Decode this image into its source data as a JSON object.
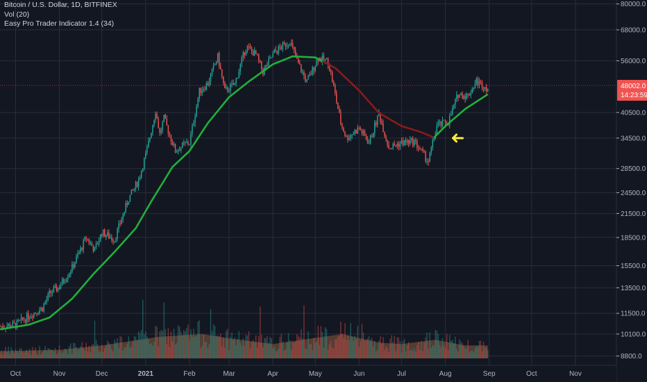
{
  "header": {
    "symbol_line": "Bitcoin / U.S. Dollar, 1D, BITFINEX",
    "volume_line": "Vol (20)",
    "indicator_line": "Easy Pro Trader Indicator 1.4 (34)"
  },
  "price_scale": {
    "ticks": [
      8800,
      10100,
      11500,
      13500,
      15500,
      18500,
      21500,
      24500,
      28500,
      34500,
      40500,
      56000,
      68000,
      80000
    ],
    "tick_labels": [
      "8800.0",
      "10100.0",
      "11500.0",
      "13500.0",
      "15500.0",
      "18500.0",
      "21500.0",
      "24500.0",
      "28500.0",
      "34500.0",
      "40500.0",
      "56000.0",
      "68000.0",
      "80000.0"
    ],
    "last_price": 48002,
    "last_price_label": "48002.0",
    "countdown_label": "14:23:59"
  },
  "time_scale": {
    "labels": [
      "Oct",
      "Nov",
      "Dec",
      "2021",
      "Feb",
      "Mar",
      "Apr",
      "May",
      "Jun",
      "Jul",
      "Aug",
      "Sep",
      "Oct",
      "Nov"
    ],
    "bold_labels": [
      "2021"
    ]
  },
  "colors": {
    "background": "#131722",
    "grid": "#2a2e39",
    "text": "#d1d4dc",
    "axis_text": "#b2b5be",
    "candle_up": "#26a69a",
    "candle_down": "#ef5350",
    "ma_up": "#1fb13c",
    "ma_down": "#8b1a1a",
    "volume_area": "#6b4a3a",
    "price_label_bg": "#f05350",
    "arrow": "#ffeb3b"
  },
  "chart_data": {
    "type": "candlestick",
    "title": "Bitcoin / U.S. Dollar, 1D, BITFINEX",
    "y_scale": "log",
    "ylim": [
      8300,
      82000
    ],
    "x_start_date": "2020-09-20",
    "x_end_date": "2021-11-30",
    "grid": true,
    "series": [
      {
        "name": "Bitcoin / U.S. Dollar",
        "kind": "close",
        "points": [
          [
            "2020-09-20",
            10600
          ],
          [
            "2020-10-01",
            10700
          ],
          [
            "2020-10-10",
            11300
          ],
          [
            "2020-10-20",
            11900
          ],
          [
            "2020-10-25",
            13000
          ],
          [
            "2020-11-01",
            13600
          ],
          [
            "2020-11-10",
            15300
          ],
          [
            "2020-11-20",
            18500
          ],
          [
            "2020-11-26",
            17100
          ],
          [
            "2020-12-01",
            19100
          ],
          [
            "2020-12-10",
            18300
          ],
          [
            "2020-12-16",
            21300
          ],
          [
            "2020-12-20",
            23600
          ],
          [
            "2020-12-27",
            26500
          ],
          [
            "2021-01-02",
            32000
          ],
          [
            "2021-01-08",
            41000
          ],
          [
            "2021-01-11",
            35400
          ],
          [
            "2021-01-14",
            39000
          ],
          [
            "2021-01-22",
            31800
          ],
          [
            "2021-01-28",
            33100
          ],
          [
            "2021-02-01",
            33500
          ],
          [
            "2021-02-08",
            46300
          ],
          [
            "2021-02-14",
            48600
          ],
          [
            "2021-02-21",
            57500
          ],
          [
            "2021-02-26",
            46300
          ],
          [
            "2021-03-05",
            48400
          ],
          [
            "2021-03-13",
            61200
          ],
          [
            "2021-03-20",
            58200
          ],
          [
            "2021-03-25",
            52300
          ],
          [
            "2021-04-02",
            59000
          ],
          [
            "2021-04-13",
            63500
          ],
          [
            "2021-04-18",
            56000
          ],
          [
            "2021-04-25",
            49000
          ],
          [
            "2021-05-03",
            57000
          ],
          [
            "2021-05-10",
            55800
          ],
          [
            "2021-05-13",
            49600
          ],
          [
            "2021-05-19",
            38000
          ],
          [
            "2021-05-23",
            34500
          ],
          [
            "2021-06-01",
            36700
          ],
          [
            "2021-06-08",
            33500
          ],
          [
            "2021-06-15",
            40200
          ],
          [
            "2021-06-22",
            32500
          ],
          [
            "2021-07-01",
            33500
          ],
          [
            "2021-07-10",
            33800
          ],
          [
            "2021-07-20",
            29800
          ],
          [
            "2021-07-26",
            37300
          ],
          [
            "2021-08-03",
            38200
          ],
          [
            "2021-08-10",
            45400
          ],
          [
            "2021-08-17",
            45000
          ],
          [
            "2021-08-23",
            49300
          ],
          [
            "2021-08-31",
            47100
          ]
        ]
      },
      {
        "name": "Easy Pro Trader Indicator 1.4 (34)",
        "kind": "moving-average",
        "points": [
          [
            "2020-09-20",
            10400
          ],
          [
            "2020-10-10",
            10700
          ],
          [
            "2020-10-25",
            11200
          ],
          [
            "2020-11-10",
            12600
          ],
          [
            "2020-11-25",
            14700
          ],
          [
            "2020-12-10",
            16900
          ],
          [
            "2020-12-25",
            19600
          ],
          [
            "2021-01-05",
            23200
          ],
          [
            "2021-01-20",
            28800
          ],
          [
            "2021-02-01",
            31800
          ],
          [
            "2021-02-14",
            37900
          ],
          [
            "2021-03-01",
            44600
          ],
          [
            "2021-03-15",
            49200
          ],
          [
            "2021-04-01",
            54800
          ],
          [
            "2021-04-15",
            57600
          ],
          [
            "2021-05-01",
            57200
          ],
          [
            "2021-05-15",
            53600
          ],
          [
            "2021-06-01",
            46500
          ],
          [
            "2021-06-15",
            40400
          ],
          [
            "2021-07-01",
            37200
          ],
          [
            "2021-07-15",
            35800
          ],
          [
            "2021-07-24",
            34600
          ],
          [
            "2021-08-01",
            37200
          ],
          [
            "2021-08-15",
            41400
          ],
          [
            "2021-08-31",
            45400
          ]
        ],
        "down_segment": [
          "2021-05-06",
          "2021-07-24"
        ]
      },
      {
        "name": "Vol (20)",
        "kind": "volume-ma",
        "points": [
          [
            "2020-09-20",
            0.25
          ],
          [
            "2020-11-01",
            0.3
          ],
          [
            "2020-12-01",
            0.45
          ],
          [
            "2021-01-10",
            0.75
          ],
          [
            "2021-02-10",
            0.85
          ],
          [
            "2021-03-01",
            0.7
          ],
          [
            "2021-04-01",
            0.5
          ],
          [
            "2021-05-20",
            0.85
          ],
          [
            "2021-06-15",
            0.55
          ],
          [
            "2021-07-01",
            0.5
          ],
          [
            "2021-07-25",
            0.65
          ],
          [
            "2021-08-15",
            0.45
          ],
          [
            "2021-08-31",
            0.45
          ]
        ]
      }
    ],
    "annotations": [
      {
        "type": "arrow",
        "date": "2021-07-30",
        "value": 34500,
        "direction": "left"
      }
    ]
  }
}
